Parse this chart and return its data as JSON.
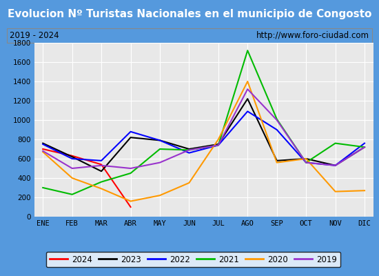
{
  "title": "Evolucion Nº Turistas Nacionales en el municipio de Congosto",
  "subtitle_left": "2019 - 2024",
  "subtitle_right": "http://www.foro-ciudad.com",
  "months": [
    "ENE",
    "FEB",
    "MAR",
    "ABR",
    "MAY",
    "JUN",
    "JUL",
    "AGO",
    "SEP",
    "OCT",
    "NOV",
    "DIC"
  ],
  "ylim": [
    0,
    1800
  ],
  "yticks": [
    0,
    200,
    400,
    600,
    800,
    1000,
    1200,
    1400,
    1600,
    1800
  ],
  "series": {
    "2024": {
      "color": "#ff0000",
      "data": [
        700,
        630,
        540,
        100,
        null,
        null,
        null,
        null,
        null,
        null,
        null,
        null
      ]
    },
    "2023": {
      "color": "#000000",
      "data": [
        760,
        620,
        470,
        820,
        790,
        700,
        750,
        1220,
        580,
        600,
        530,
        720
      ]
    },
    "2022": {
      "color": "#0000ff",
      "data": [
        750,
        600,
        580,
        880,
        790,
        660,
        740,
        1090,
        900,
        560,
        530,
        760
      ]
    },
    "2021": {
      "color": "#00bb00",
      "data": [
        300,
        230,
        360,
        450,
        700,
        690,
        740,
        1720,
        1010,
        560,
        760,
        720
      ]
    },
    "2020": {
      "color": "#ff9900",
      "data": [
        670,
        400,
        290,
        160,
        220,
        350,
        800,
        1400,
        560,
        600,
        260,
        270
      ]
    },
    "2019": {
      "color": "#9933cc",
      "data": [
        680,
        500,
        530,
        500,
        560,
        690,
        740,
        1320,
        1000,
        560,
        530,
        720
      ]
    }
  },
  "title_bg_color": "#5599dd",
  "title_color": "#ffffff",
  "title_fontsize": 11,
  "plot_bg_color": "#e8e8e8",
  "outer_bg_color": "#5599dd",
  "legend_order": [
    "2024",
    "2023",
    "2022",
    "2021",
    "2020",
    "2019"
  ]
}
